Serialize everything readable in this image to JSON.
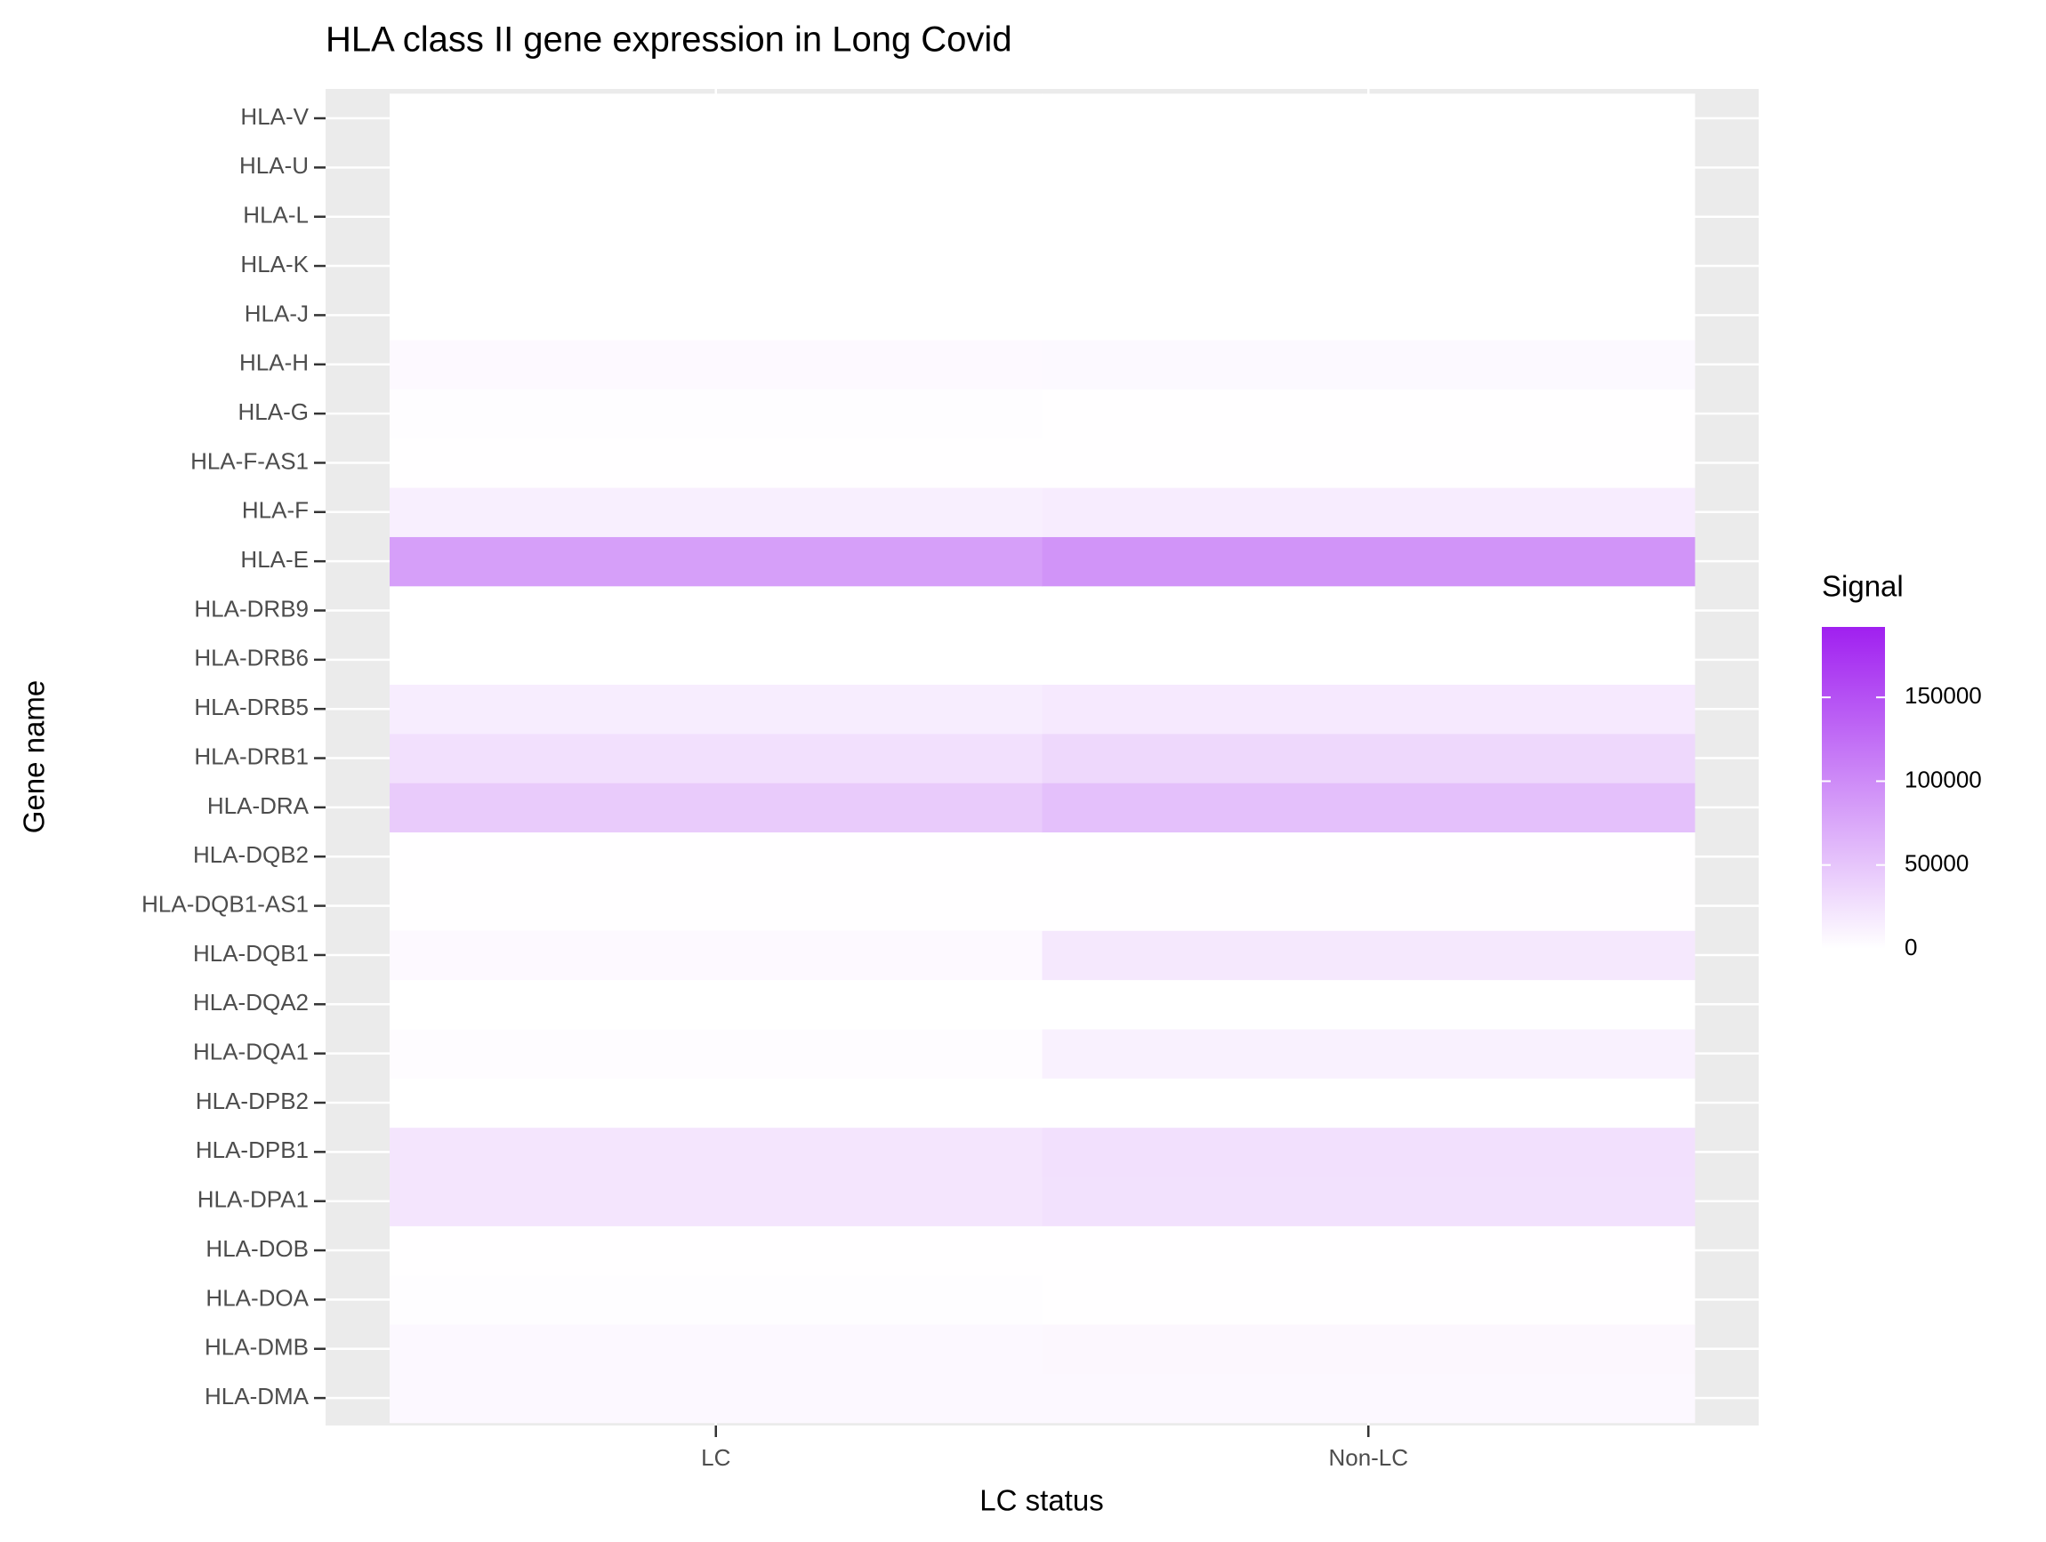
{
  "chart_data": {
    "type": "heatmap",
    "title": "HLA class II gene expression in Long Covid",
    "x_label": "LC status",
    "y_label": "Gene name",
    "x": [
      "LC",
      "Non-LC"
    ],
    "y": [
      "HLA-DMA",
      "HLA-DMB",
      "HLA-DOA",
      "HLA-DOB",
      "HLA-DPA1",
      "HLA-DPB1",
      "HLA-DPB2",
      "HLA-DQA1",
      "HLA-DQA2",
      "HLA-DQB1",
      "HLA-DQB1-AS1",
      "HLA-DQB2",
      "HLA-DRA",
      "HLA-DRB1",
      "HLA-DRB5",
      "HLA-DRB6",
      "HLA-DRB9",
      "HLA-E",
      "HLA-F",
      "HLA-F-AS1",
      "HLA-G",
      "HLA-H",
      "HLA-J",
      "HLA-K",
      "HLA-L",
      "HLA-U",
      "HLA-V"
    ],
    "values": [
      [
        6000,
        6000
      ],
      [
        6000,
        6500
      ],
      [
        1500,
        500
      ],
      [
        500,
        500
      ],
      [
        22000,
        26000
      ],
      [
        22000,
        27000
      ],
      [
        200,
        200
      ],
      [
        3000,
        12000
      ],
      [
        300,
        300
      ],
      [
        5000,
        20000
      ],
      [
        1000,
        800
      ],
      [
        500,
        600
      ],
      [
        45000,
        54000
      ],
      [
        27000,
        34000
      ],
      [
        15500,
        19000
      ],
      [
        300,
        300
      ],
      [
        100,
        100
      ],
      [
        83000,
        92000
      ],
      [
        14000,
        16000
      ],
      [
        500,
        500
      ],
      [
        1500,
        1000
      ],
      [
        5000,
        5500
      ],
      [
        200,
        200
      ],
      [
        100,
        100
      ],
      [
        200,
        200
      ],
      [
        50,
        50
      ],
      [
        50,
        50
      ]
    ],
    "colorbar": {
      "title": "Signal",
      "lim": [
        0,
        192000
      ],
      "ticks": [
        0,
        50000,
        100000,
        150000
      ],
      "low": "#ffffff",
      "high": "#a020f0"
    }
  }
}
